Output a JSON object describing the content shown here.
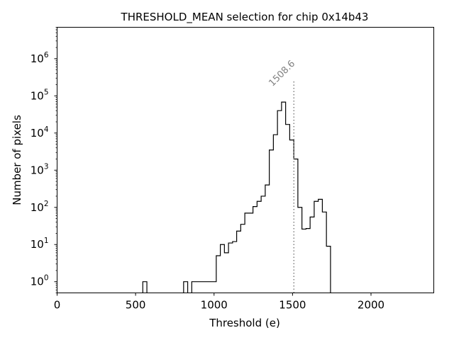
{
  "chart_data": {
    "type": "histogram",
    "title": "THRESHOLD_MEAN selection for chip 0x14b43",
    "xlabel": "Threshold (e)",
    "ylabel": "Number of pixels",
    "xlim": [
      0,
      2400
    ],
    "ylim": [
      0.5,
      7000000
    ],
    "yscale": "log",
    "x_ticks": [
      0,
      500,
      1000,
      1500,
      2000
    ],
    "x_tick_labels": [
      "0",
      "500",
      "1000",
      "1500",
      "2000"
    ],
    "y_tick_base": "10",
    "y_tick_exponents": [
      "0",
      "1",
      "2",
      "3",
      "4",
      "5",
      "6"
    ],
    "y_tick_values": [
      1,
      10,
      100,
      1000,
      10000,
      100000,
      1000000
    ],
    "bin_width": 26,
    "bin_start": 0,
    "counts": [
      0,
      0,
      0,
      0,
      0,
      0,
      0,
      0,
      0,
      0,
      0,
      0,
      0,
      0,
      0,
      0,
      0,
      0,
      0,
      0,
      0,
      1,
      0,
      0,
      0,
      0,
      0,
      0,
      0,
      0,
      0,
      1,
      0,
      1,
      1,
      1,
      1,
      1,
      1,
      5,
      10,
      6,
      11,
      12,
      23,
      35,
      70,
      70,
      105,
      145,
      200,
      400,
      3500,
      9000,
      40000,
      68000,
      17000,
      6500,
      2000,
      100,
      26,
      27,
      55,
      145,
      165,
      75,
      9,
      0
    ],
    "marker": {
      "value": 1508.6,
      "label": "1508.6",
      "color": "#808080"
    },
    "line_color": "#000000"
  }
}
